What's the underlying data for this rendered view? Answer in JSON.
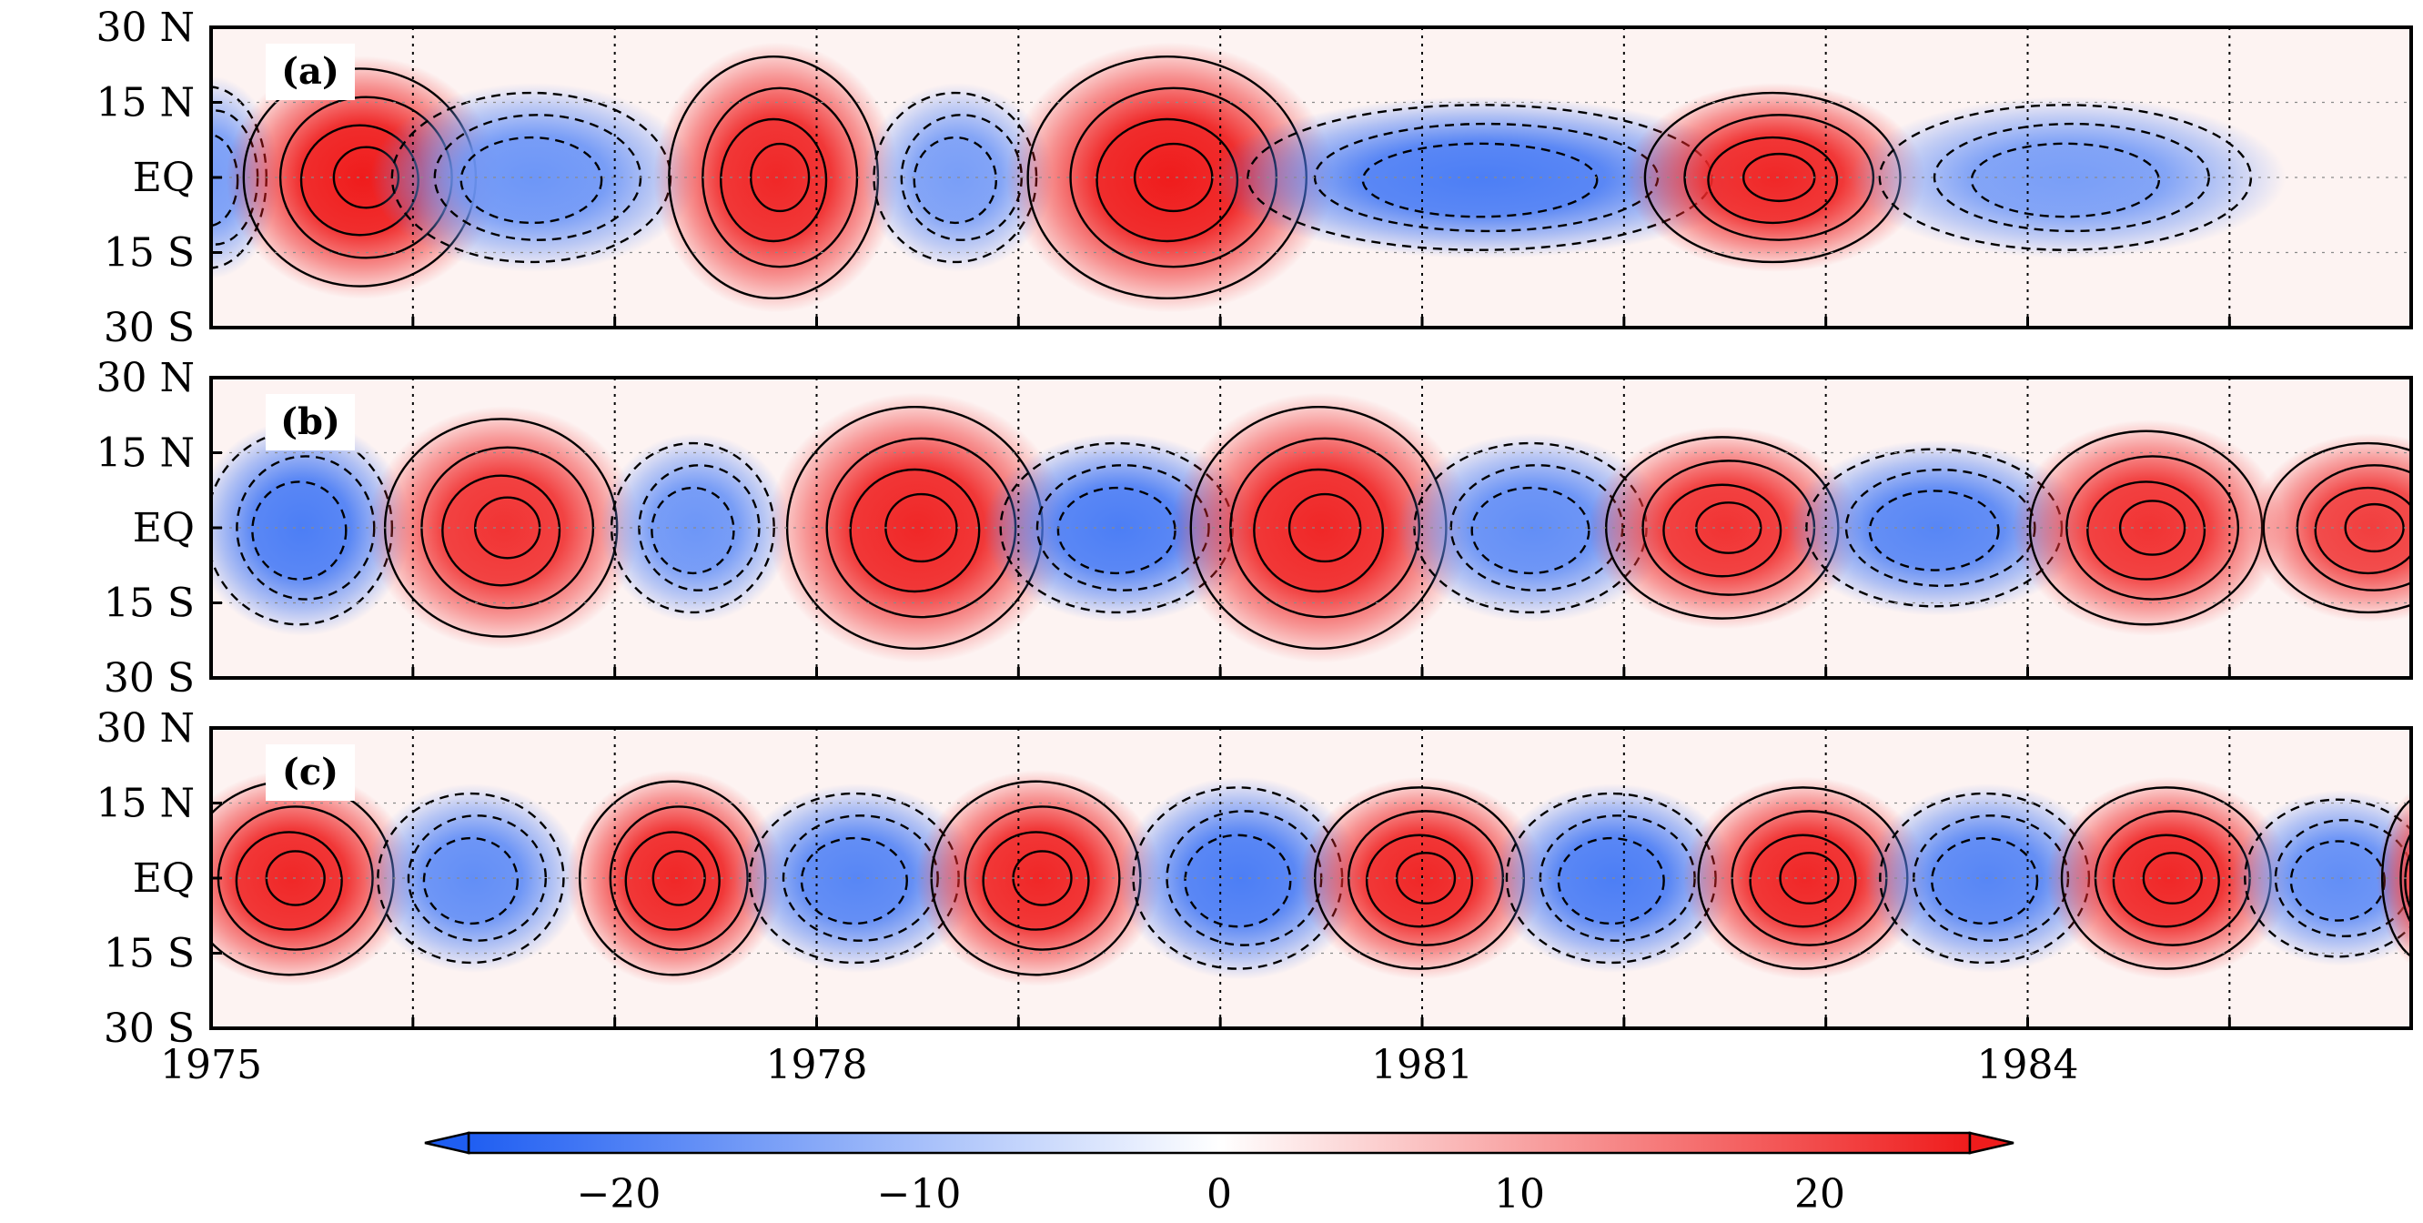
{
  "chart_data": [
    {
      "type": "heatmap",
      "panel_label": "(a)",
      "xlim": [
        1975,
        1985.9
      ],
      "ylim": [
        -30,
        30
      ],
      "yticks": [
        {
          "value": 30,
          "label": "30 N"
        },
        {
          "value": 15,
          "label": "15 N"
        },
        {
          "value": 0,
          "label": "EQ"
        },
        {
          "value": -15,
          "label": "15 S"
        },
        {
          "value": -30,
          "label": "30 S"
        }
      ],
      "vertical_reference_lines": [
        1976.0,
        1977.0,
        1978.0,
        1979.0,
        1980.0,
        1981.0,
        1982.0,
        1983.0,
        1984.0,
        1985.0
      ],
      "anomalies": [
        {
          "t": 1975.0,
          "value": -12,
          "half_width_yr": 0.25,
          "half_height_deg": 15
        },
        {
          "t": 1975.75,
          "value": 20,
          "half_width_yr": 0.5,
          "half_height_deg": 18
        },
        {
          "t": 1976.6,
          "value": -13,
          "half_width_yr": 0.6,
          "half_height_deg": 14
        },
        {
          "t": 1977.8,
          "value": 19,
          "half_width_yr": 0.45,
          "half_height_deg": 20
        },
        {
          "t": 1978.7,
          "value": -12,
          "half_width_yr": 0.35,
          "half_height_deg": 14
        },
        {
          "t": 1979.75,
          "value": 21,
          "half_width_yr": 0.6,
          "half_height_deg": 20
        },
        {
          "t": 1981.3,
          "value": -16,
          "half_width_yr": 1.0,
          "half_height_deg": 12
        },
        {
          "t": 1982.75,
          "value": 19,
          "half_width_yr": 0.55,
          "half_height_deg": 14
        },
        {
          "t": 1984.2,
          "value": -12,
          "half_width_yr": 0.8,
          "half_height_deg": 12
        }
      ]
    },
    {
      "type": "heatmap",
      "panel_label": "(b)",
      "xlim": [
        1975,
        1985.9
      ],
      "ylim": [
        -30,
        30
      ],
      "yticks": [
        {
          "value": 30,
          "label": "30 N"
        },
        {
          "value": 15,
          "label": "15 N"
        },
        {
          "value": 0,
          "label": "EQ"
        },
        {
          "value": -15,
          "label": "15 S"
        },
        {
          "value": -30,
          "label": "30 S"
        }
      ],
      "vertical_reference_lines": [
        1976.0,
        1977.0,
        1978.0,
        1979.0,
        1980.0,
        1981.0,
        1982.0,
        1983.0,
        1984.0,
        1985.0
      ],
      "anomalies": [
        {
          "t": 1975.45,
          "value": -16,
          "half_width_yr": 0.4,
          "half_height_deg": 16
        },
        {
          "t": 1976.45,
          "value": 18,
          "half_width_yr": 0.5,
          "half_height_deg": 18
        },
        {
          "t": 1977.4,
          "value": -13,
          "half_width_yr": 0.35,
          "half_height_deg": 14
        },
        {
          "t": 1978.5,
          "value": 19,
          "half_width_yr": 0.55,
          "half_height_deg": 20
        },
        {
          "t": 1979.5,
          "value": -16,
          "half_width_yr": 0.5,
          "half_height_deg": 14
        },
        {
          "t": 1980.5,
          "value": 19,
          "half_width_yr": 0.55,
          "half_height_deg": 20
        },
        {
          "t": 1981.55,
          "value": -14,
          "half_width_yr": 0.5,
          "half_height_deg": 14
        },
        {
          "t": 1982.5,
          "value": 18,
          "half_width_yr": 0.5,
          "half_height_deg": 15
        },
        {
          "t": 1983.55,
          "value": -15,
          "half_width_yr": 0.55,
          "half_height_deg": 13
        },
        {
          "t": 1984.6,
          "value": 18,
          "half_width_yr": 0.5,
          "half_height_deg": 16
        },
        {
          "t": 1985.7,
          "value": 17,
          "half_width_yr": 0.45,
          "half_height_deg": 14
        }
      ]
    },
    {
      "type": "heatmap",
      "panel_label": "(c)",
      "xlim": [
        1975,
        1985.9
      ],
      "ylim": [
        -30,
        30
      ],
      "yticks": [
        {
          "value": 30,
          "label": "30 N"
        },
        {
          "value": 15,
          "label": "15 N"
        },
        {
          "value": 0,
          "label": "EQ"
        },
        {
          "value": -15,
          "label": "15 S"
        },
        {
          "value": -30,
          "label": "30 S"
        }
      ],
      "xticks": [
        {
          "value": 1975,
          "label": "1975"
        },
        {
          "value": 1978,
          "label": "1978"
        },
        {
          "value": 1981,
          "label": "1981"
        },
        {
          "value": 1984,
          "label": "1984"
        }
      ],
      "vertical_reference_lines": [
        1976.0,
        1977.0,
        1978.0,
        1979.0,
        1980.0,
        1981.0,
        1982.0,
        1983.0,
        1984.0,
        1985.0
      ],
      "anomalies": [
        {
          "t": 1975.4,
          "value": 19,
          "half_width_yr": 0.45,
          "half_height_deg": 16
        },
        {
          "t": 1976.3,
          "value": -14,
          "half_width_yr": 0.4,
          "half_height_deg": 14
        },
        {
          "t": 1977.3,
          "value": 19,
          "half_width_yr": 0.4,
          "half_height_deg": 16
        },
        {
          "t": 1978.2,
          "value": -15,
          "half_width_yr": 0.45,
          "half_height_deg": 14
        },
        {
          "t": 1979.1,
          "value": 19,
          "half_width_yr": 0.45,
          "half_height_deg": 16
        },
        {
          "t": 1980.1,
          "value": -16,
          "half_width_yr": 0.45,
          "half_height_deg": 15
        },
        {
          "t": 1981.0,
          "value": 19,
          "half_width_yr": 0.45,
          "half_height_deg": 15
        },
        {
          "t": 1981.95,
          "value": -16,
          "half_width_yr": 0.45,
          "half_height_deg": 14
        },
        {
          "t": 1982.9,
          "value": 19,
          "half_width_yr": 0.45,
          "half_height_deg": 15
        },
        {
          "t": 1983.8,
          "value": -15,
          "half_width_yr": 0.45,
          "half_height_deg": 14
        },
        {
          "t": 1984.7,
          "value": 19,
          "half_width_yr": 0.45,
          "half_height_deg": 15
        },
        {
          "t": 1985.55,
          "value": -14,
          "half_width_yr": 0.4,
          "half_height_deg": 13
        },
        {
          "t": 1986.0,
          "value": 16,
          "half_width_yr": 0.2,
          "half_height_deg": 14
        }
      ]
    }
  ],
  "colorbar": {
    "range": [
      -25,
      25
    ],
    "ticks": [
      {
        "value": -20,
        "label": "−20"
      },
      {
        "value": -10,
        "label": "−10"
      },
      {
        "value": 0,
        "label": "0"
      },
      {
        "value": 10,
        "label": "10"
      },
      {
        "value": 20,
        "label": "20"
      }
    ],
    "colors": {
      "low": "#1f5ef2",
      "zero": "#ffffff",
      "high": "#ef1c1c"
    },
    "extend": "both"
  }
}
